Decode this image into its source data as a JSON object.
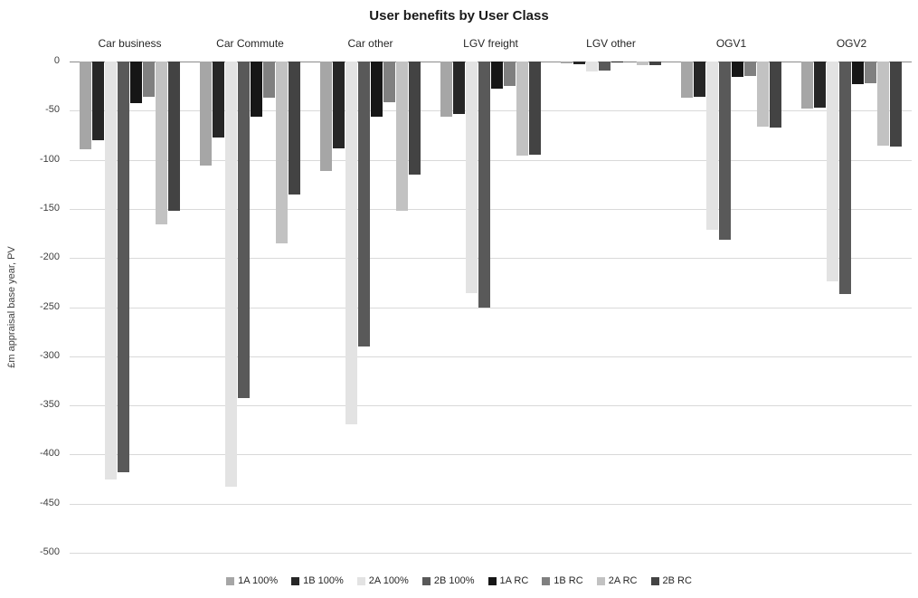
{
  "title": "User benefits by User Class",
  "chart_data": {
    "type": "bar",
    "title": "User benefits by User Class",
    "xlabel": "",
    "ylabel": "£m appraisal base year, PV",
    "ylim": [
      -500,
      0
    ],
    "ytick_interval": 50,
    "ytick_labels": [
      "0",
      "-50",
      "-100",
      "-150",
      "-200",
      "-250",
      "-300",
      "-350",
      "-400",
      "-450",
      "-500"
    ],
    "grid": true,
    "legend_position": "bottom",
    "categories": [
      "Car business",
      "Car Commute",
      "Car other",
      "LGV freight",
      "LGV other",
      "OGV1",
      "OGV2"
    ],
    "series": [
      {
        "name": "1A 100%",
        "color": "#a6a6a6",
        "values": [
          -89,
          -106,
          -111,
          -56,
          -2,
          -37,
          -48
        ]
      },
      {
        "name": "1B 100%",
        "color": "#262626",
        "values": [
          -80,
          -77,
          -88,
          -53,
          -3,
          -36,
          -47
        ]
      },
      {
        "name": "2A 100%",
        "color": "#e3e3e3",
        "values": [
          -425,
          -433,
          -369,
          -236,
          -10,
          -171,
          -224
        ]
      },
      {
        "name": "2B 100%",
        "color": "#595959",
        "values": [
          -418,
          -343,
          -290,
          -250,
          -9,
          -181,
          -237
        ]
      },
      {
        "name": "1A RC",
        "color": "#161616",
        "values": [
          -42,
          -56,
          -56,
          -28,
          -1,
          -16,
          -23
        ]
      },
      {
        "name": "1B RC",
        "color": "#808080",
        "values": [
          -36,
          -37,
          -41,
          -25,
          -1,
          -15,
          -22
        ]
      },
      {
        "name": "2A RC",
        "color": "#c2c2c2",
        "values": [
          -166,
          -185,
          -152,
          -96,
          -4,
          -66,
          -86
        ]
      },
      {
        "name": "2B RC",
        "color": "#434343",
        "values": [
          -152,
          -135,
          -115,
          -95,
          -4,
          -67,
          -87
        ]
      }
    ]
  }
}
